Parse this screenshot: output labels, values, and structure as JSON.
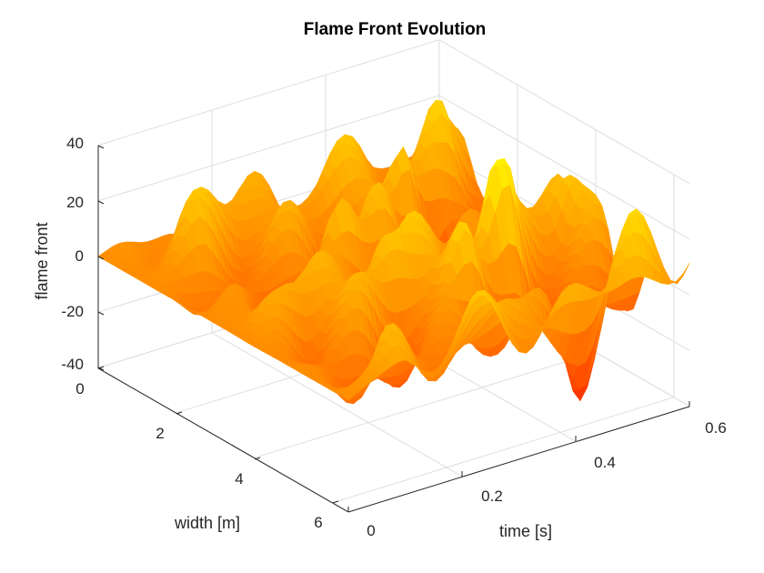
{
  "chart_data": {
    "type": "surface",
    "title": "Flame Front Evolution",
    "xlabel": "time [s]",
    "ylabel": "width [m]",
    "zlabel": "flame front",
    "xlim": [
      0,
      0.6
    ],
    "ylim": [
      0,
      6.4
    ],
    "zlim": [
      -40,
      40
    ],
    "x_ticks": [
      "0",
      "0.2",
      "0.4",
      "0.6"
    ],
    "y_ticks": [
      "0",
      "2",
      "4",
      "6"
    ],
    "z_ticks": [
      "40",
      "20",
      "0",
      "-20",
      "-40"
    ],
    "colormap": [
      "#e60000",
      "#ff4000",
      "#ff8000",
      "#ffbf00",
      "#ffff00"
    ],
    "grid": true,
    "surface_z_range": [
      -38,
      38
    ]
  }
}
